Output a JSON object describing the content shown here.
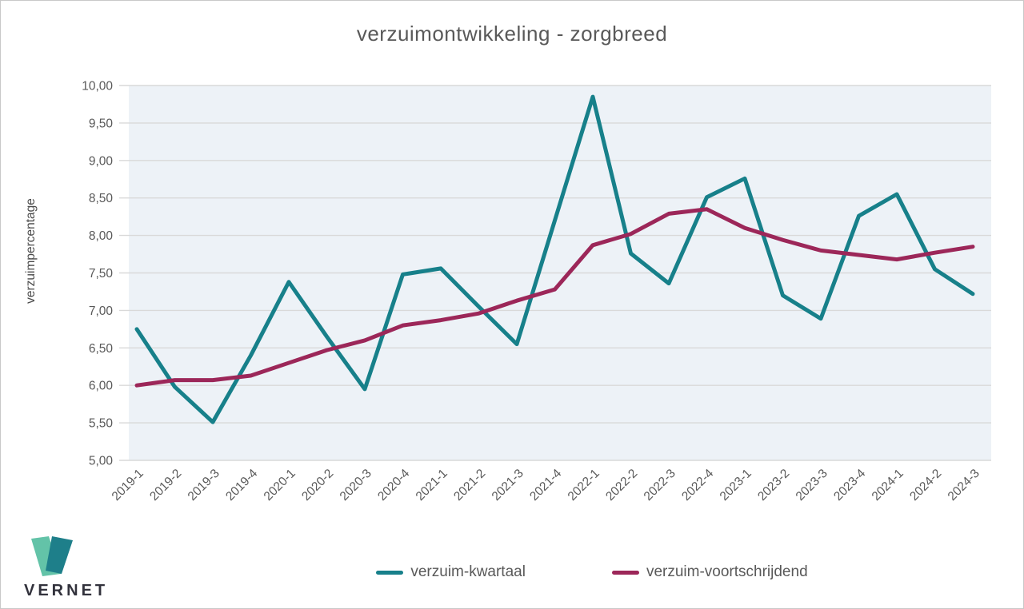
{
  "title": "verzuimontwikkeling - zorgbreed",
  "colors": {
    "plot_bg": "#edf2f7",
    "grid": "#d9d9d9",
    "axis_text": "#595959",
    "title_text": "#595959",
    "teal": "#17808a",
    "maroon": "#9c2759",
    "logo_light_green": "#63c3a8",
    "logo_dark_teal": "#1e7f8a",
    "logo_text": "#32323c"
  },
  "chart_data": {
    "type": "line",
    "title": "verzuimontwikkeling - zorgbreed",
    "xlabel": "",
    "ylabel": "verzuimpercentage",
    "ylim": [
      5,
      10
    ],
    "grid": true,
    "legend_position": "bottom",
    "ytick_values": [
      10,
      9.5,
      9,
      8.5,
      8,
      7.5,
      7,
      6.5,
      6,
      5.5,
      5
    ],
    "ytick_labels": [
      "10,00",
      "9,50",
      "9,00",
      "8,50",
      "8,00",
      "7,50",
      "7,00",
      "6,50",
      "6,00",
      "5,50",
      "5,00"
    ],
    "categories": [
      "2019-1",
      "2019-2",
      "2019-3",
      "2019-4",
      "2020-1",
      "2020-2",
      "2020-3",
      "2020-4",
      "2021-1",
      "2021-2",
      "2021-3",
      "2021-4",
      "2022-1",
      "2022-2",
      "2022-3",
      "2022-4",
      "2023-1",
      "2023-2",
      "2023-3",
      "2023-4",
      "2024-1",
      "2024-2",
      "2024-3"
    ],
    "series": [
      {
        "name": "verzuim-kwartaal",
        "color": "#17808a",
        "values": [
          6.75,
          5.98,
          5.51,
          6.4,
          7.38,
          6.65,
          5.95,
          7.48,
          7.56,
          7.05,
          6.55,
          8.2,
          9.85,
          7.76,
          7.36,
          8.51,
          8.76,
          7.2,
          6.89,
          8.26,
          8.55,
          7.55,
          7.22
        ]
      },
      {
        "name": "verzuim-voortschrijdend",
        "color": "#9c2759",
        "values": [
          6.0,
          6.07,
          6.07,
          6.13,
          6.3,
          6.47,
          6.6,
          6.8,
          6.87,
          6.96,
          7.13,
          7.28,
          7.87,
          8.02,
          8.29,
          8.35,
          8.1,
          7.94,
          7.8,
          7.74,
          7.68,
          7.77,
          7.85
        ]
      }
    ]
  },
  "legend": {
    "items": [
      {
        "label": "verzuim-kwartaal"
      },
      {
        "label": "verzuim-voortschrijdend"
      }
    ]
  },
  "logo": {
    "text": "VERNET"
  }
}
